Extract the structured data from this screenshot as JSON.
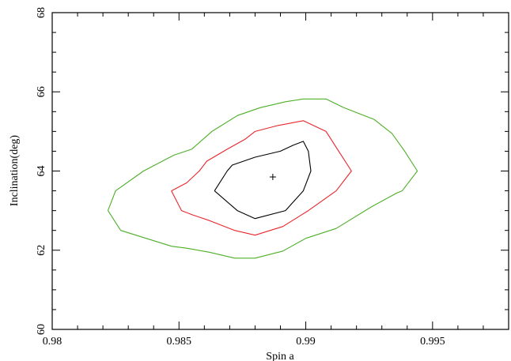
{
  "chart_data": {
    "type": "line",
    "xlabel": "Spin a",
    "ylabel": "Inclination(deg)",
    "xlim": [
      0.98,
      0.998
    ],
    "ylim": [
      60,
      68
    ],
    "x_ticks": [
      "0.98",
      "0.985",
      "0.99",
      "0.995"
    ],
    "y_ticks": [
      "60",
      "62",
      "64",
      "66",
      "68"
    ],
    "grid": false,
    "best_fit": {
      "x": 0.9887,
      "y": 63.85,
      "marker": "+"
    },
    "series": [
      {
        "color": "#000000",
        "points": [
          [
            0.9864,
            63.5
          ],
          [
            0.9869,
            64.0
          ],
          [
            0.9871,
            64.15
          ],
          [
            0.988,
            64.35
          ],
          [
            0.989,
            64.5
          ],
          [
            0.9895,
            64.65
          ],
          [
            0.9899,
            64.75
          ],
          [
            0.9901,
            64.5
          ],
          [
            0.9902,
            64.0
          ],
          [
            0.9899,
            63.5
          ],
          [
            0.9892,
            63.0
          ],
          [
            0.988,
            62.8
          ],
          [
            0.9873,
            63.0
          ],
          [
            0.9864,
            63.5
          ]
        ]
      },
      {
        "color": "#e8262b",
        "points": [
          [
            0.9847,
            63.5
          ],
          [
            0.9853,
            63.7
          ],
          [
            0.9858,
            64.0
          ],
          [
            0.9861,
            64.25
          ],
          [
            0.9869,
            64.55
          ],
          [
            0.9876,
            64.8
          ],
          [
            0.988,
            65.0
          ],
          [
            0.9889,
            65.15
          ],
          [
            0.9899,
            65.27
          ],
          [
            0.9908,
            65.0
          ],
          [
            0.9913,
            64.5
          ],
          [
            0.9918,
            64.0
          ],
          [
            0.9912,
            63.5
          ],
          [
            0.9901,
            63.0
          ],
          [
            0.9891,
            62.6
          ],
          [
            0.988,
            62.38
          ],
          [
            0.9872,
            62.5
          ],
          [
            0.9862,
            62.75
          ],
          [
            0.9855,
            62.9
          ],
          [
            0.9851,
            63.0
          ],
          [
            0.9847,
            63.5
          ]
        ]
      },
      {
        "color": "#4daf27",
        "points": [
          [
            0.9822,
            63.0
          ],
          [
            0.9825,
            63.5
          ],
          [
            0.9836,
            64.0
          ],
          [
            0.9848,
            64.4
          ],
          [
            0.9855,
            64.55
          ],
          [
            0.9863,
            65.0
          ],
          [
            0.9873,
            65.4
          ],
          [
            0.9882,
            65.6
          ],
          [
            0.9892,
            65.75
          ],
          [
            0.9899,
            65.82
          ],
          [
            0.9908,
            65.82
          ],
          [
            0.9915,
            65.6
          ],
          [
            0.9927,
            65.3
          ],
          [
            0.9934,
            64.95
          ],
          [
            0.9939,
            64.5
          ],
          [
            0.9944,
            64.0
          ],
          [
            0.9938,
            63.5
          ],
          [
            0.9936,
            63.45
          ],
          [
            0.9926,
            63.1
          ],
          [
            0.9912,
            62.55
          ],
          [
            0.99,
            62.3
          ],
          [
            0.9891,
            61.98
          ],
          [
            0.988,
            61.8
          ],
          [
            0.9872,
            61.8
          ],
          [
            0.9862,
            61.95
          ],
          [
            0.9853,
            62.05
          ],
          [
            0.9847,
            62.1
          ],
          [
            0.9837,
            62.3
          ],
          [
            0.9827,
            62.5
          ],
          [
            0.9822,
            63.0
          ]
        ]
      }
    ]
  }
}
